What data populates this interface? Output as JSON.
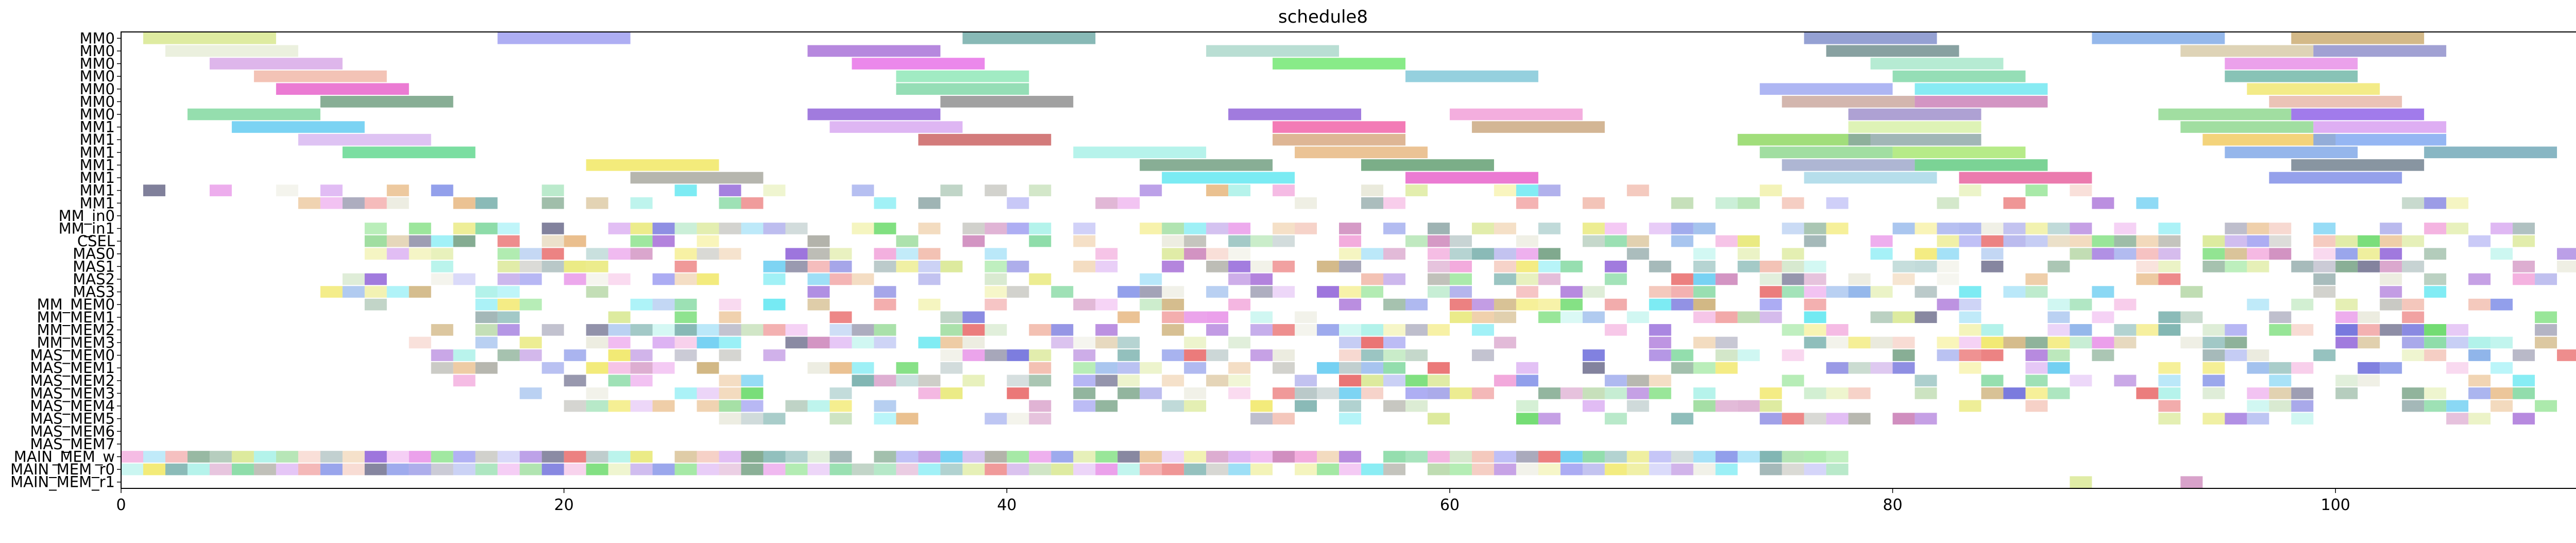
{
  "chart_data": {
    "type": "gantt",
    "title": "schedule8",
    "xlim": [
      0,
      114
    ],
    "xticks": [
      0,
      20,
      40,
      60,
      80,
      100
    ],
    "grid": false,
    "rows": [
      "MM0",
      "MM0",
      "MM0",
      "MM0",
      "MM0",
      "MM0",
      "MM0",
      "MM1",
      "MM1",
      "MM1",
      "MM1",
      "MM1",
      "MM1",
      "MM1",
      "MM_in0",
      "MM_in1",
      "CSEL",
      "MAS0",
      "MAS1",
      "MAS2",
      "MAS3",
      "MM_MEM0",
      "MM_MEM1",
      "MM_MEM2",
      "MM_MEM3",
      "MAS_MEM0",
      "MAS_MEM1",
      "MAS_MEM2",
      "MAS_MEM3",
      "MAS_MEM4",
      "MAS_MEM5",
      "MAS_MEM6",
      "MAS_MEM7",
      "MAIN_MEM_w",
      "MAIN_MEM_r0",
      "MAIN_MEM_r1"
    ],
    "bars": [
      {
        "row": 0,
        "start": 1,
        "end": 7,
        "color": "#d6e68a"
      },
      {
        "row": 0,
        "start": 17,
        "end": 23,
        "color": "#9a9af0"
      },
      {
        "row": 0,
        "start": 38,
        "end": 44,
        "color": "#6aa8a4"
      },
      {
        "row": 0,
        "start": 76,
        "end": 82,
        "color": "#7a8ac8"
      },
      {
        "row": 0,
        "start": 89,
        "end": 95,
        "color": "#7aa6e6"
      },
      {
        "row": 0,
        "start": 98,
        "end": 104,
        "color": "#c8a86a"
      },
      {
        "row": 1,
        "start": 2,
        "end": 8,
        "color": "#e6ecd6"
      },
      {
        "row": 1,
        "start": 31,
        "end": 37,
        "color": "#a46ad6"
      },
      {
        "row": 1,
        "start": 49,
        "end": 55,
        "color": "#a8d6c8"
      },
      {
        "row": 1,
        "start": 77,
        "end": 83,
        "color": "#6a8a8a"
      },
      {
        "row": 1,
        "start": 93,
        "end": 99,
        "color": "#d6c8a4"
      },
      {
        "row": 1,
        "start": 99,
        "end": 105,
        "color": "#8a8ac8"
      },
      {
        "row": 2,
        "start": 4,
        "end": 10,
        "color": "#d6a4e6"
      },
      {
        "row": 2,
        "start": 33,
        "end": 39,
        "color": "#e66ae6"
      },
      {
        "row": 2,
        "start": 52,
        "end": 58,
        "color": "#6ae66a"
      },
      {
        "row": 2,
        "start": 79,
        "end": 85,
        "color": "#a4e6c8"
      },
      {
        "row": 2,
        "start": 95,
        "end": 101,
        "color": "#e68ae6"
      },
      {
        "row": 3,
        "start": 6,
        "end": 12,
        "color": "#f0b4a4"
      },
      {
        "row": 3,
        "start": 35,
        "end": 41,
        "color": "#8ae6b4"
      },
      {
        "row": 3,
        "start": 58,
        "end": 64,
        "color": "#7ac4d6"
      },
      {
        "row": 3,
        "start": 80,
        "end": 86,
        "color": "#7ad6a4"
      },
      {
        "row": 3,
        "start": 95,
        "end": 101,
        "color": "#6ab4a4"
      },
      {
        "row": 4,
        "start": 7,
        "end": 13,
        "color": "#e65ac8"
      },
      {
        "row": 4,
        "start": 35,
        "end": 41,
        "color": "#7ad6a4"
      },
      {
        "row": 4,
        "start": 74,
        "end": 80,
        "color": "#9aa4f0"
      },
      {
        "row": 4,
        "start": 81,
        "end": 87,
        "color": "#6ae6f0"
      },
      {
        "row": 4,
        "start": 96,
        "end": 102,
        "color": "#f0e66a"
      },
      {
        "row": 5,
        "start": 9,
        "end": 15,
        "color": "#6a9a7a"
      },
      {
        "row": 5,
        "start": 37,
        "end": 43,
        "color": "#8a8a8a"
      },
      {
        "row": 5,
        "start": 75,
        "end": 81,
        "color": "#c8a49a"
      },
      {
        "row": 5,
        "start": 81,
        "end": 87,
        "color": "#c87ab4"
      },
      {
        "row": 5,
        "start": 97,
        "end": 103,
        "color": "#e6b4a4"
      },
      {
        "row": 6,
        "start": 3,
        "end": 9,
        "color": "#7ad69a"
      },
      {
        "row": 6,
        "start": 31,
        "end": 37,
        "color": "#8a5ad6"
      },
      {
        "row": 6,
        "start": 50,
        "end": 56,
        "color": "#8a5ad6"
      },
      {
        "row": 6,
        "start": 60,
        "end": 66,
        "color": "#f09ad6"
      },
      {
        "row": 6,
        "start": 78,
        "end": 84,
        "color": "#9a8ac8"
      },
      {
        "row": 6,
        "start": 92,
        "end": 98,
        "color": "#8ad68a"
      },
      {
        "row": 6,
        "start": 98,
        "end": 104,
        "color": "#8a5ae6"
      },
      {
        "row": 7,
        "start": 5,
        "end": 11,
        "color": "#5ac8f0"
      },
      {
        "row": 7,
        "start": 32,
        "end": 38,
        "color": "#d6a4f0"
      },
      {
        "row": 7,
        "start": 52,
        "end": 58,
        "color": "#f05aa4"
      },
      {
        "row": 7,
        "start": 61,
        "end": 67,
        "color": "#c8a47a"
      },
      {
        "row": 7,
        "start": 78,
        "end": 84,
        "color": "#d6f0a4"
      },
      {
        "row": 7,
        "start": 93,
        "end": 99,
        "color": "#8ad68a"
      },
      {
        "row": 7,
        "start": 99,
        "end": 105,
        "color": "#d69af0"
      },
      {
        "row": 8,
        "start": 8,
        "end": 14,
        "color": "#d6b4f0"
      },
      {
        "row": 8,
        "start": 36,
        "end": 42,
        "color": "#c85a5a"
      },
      {
        "row": 8,
        "start": 52,
        "end": 58,
        "color": "#d6a47a"
      },
      {
        "row": 8,
        "start": 73,
        "end": 79,
        "color": "#8ad65a"
      },
      {
        "row": 8,
        "start": 78,
        "end": 84,
        "color": "#8aa4a4"
      },
      {
        "row": 8,
        "start": 94,
        "end": 100,
        "color": "#f0c85a"
      },
      {
        "row": 8,
        "start": 99,
        "end": 105,
        "color": "#7aa4f0"
      },
      {
        "row": 9,
        "start": 10,
        "end": 16,
        "color": "#5ad68a"
      },
      {
        "row": 9,
        "start": 43,
        "end": 49,
        "color": "#a4f0e6"
      },
      {
        "row": 9,
        "start": 53,
        "end": 59,
        "color": "#e6b47a"
      },
      {
        "row": 9,
        "start": 74,
        "end": 80,
        "color": "#8ad68a"
      },
      {
        "row": 9,
        "start": 80,
        "end": 86,
        "color": "#a4e66a"
      },
      {
        "row": 9,
        "start": 95,
        "end": 101,
        "color": "#7aa4e6"
      },
      {
        "row": 9,
        "start": 104,
        "end": 110,
        "color": "#6aa4b4"
      },
      {
        "row": 10,
        "start": 21,
        "end": 27,
        "color": "#f0e65a"
      },
      {
        "row": 10,
        "start": 46,
        "end": 52,
        "color": "#6a9a7a"
      },
      {
        "row": 10,
        "start": 56,
        "end": 62,
        "color": "#5a9a6a"
      },
      {
        "row": 10,
        "start": 75,
        "end": 81,
        "color": "#9aa4c8"
      },
      {
        "row": 10,
        "start": 81,
        "end": 87,
        "color": "#5ac87a"
      },
      {
        "row": 10,
        "start": 98,
        "end": 104,
        "color": "#6a7a8a"
      },
      {
        "row": 11,
        "start": 23,
        "end": 29,
        "color": "#a4a49a"
      },
      {
        "row": 11,
        "start": 47,
        "end": 53,
        "color": "#5ae6f0"
      },
      {
        "row": 11,
        "start": 58,
        "end": 64,
        "color": "#e65ac8"
      },
      {
        "row": 11,
        "start": 76,
        "end": 82,
        "color": "#a4d6e6"
      },
      {
        "row": 11,
        "start": 83,
        "end": 89,
        "color": "#e65a9a"
      },
      {
        "row": 11,
        "start": 97,
        "end": 103,
        "color": "#7a8ae6"
      }
    ],
    "pattern_rows": [
      {
        "row": 12,
        "from": 0,
        "to": 89,
        "density": 0.35
      },
      {
        "row": 13,
        "from": 2,
        "to": 108,
        "density": 0.35
      },
      {
        "row": 14,
        "from": 75,
        "to": 80,
        "density": 0.2
      },
      {
        "row": 15,
        "from": 10,
        "to": 114,
        "density": 0.65
      },
      {
        "row": 16,
        "from": 11,
        "to": 114,
        "density": 0.6
      },
      {
        "row": 17,
        "from": 11,
        "to": 114,
        "density": 0.6
      },
      {
        "row": 18,
        "from": 12,
        "to": 114,
        "density": 0.55
      },
      {
        "row": 19,
        "from": 9,
        "to": 110,
        "density": 0.45
      },
      {
        "row": 20,
        "from": 9,
        "to": 107,
        "density": 0.4
      },
      {
        "row": 21,
        "from": 9,
        "to": 110,
        "density": 0.4
      },
      {
        "row": 22,
        "from": 13,
        "to": 111,
        "density": 0.45
      },
      {
        "row": 23,
        "from": 13,
        "to": 113,
        "density": 0.55
      },
      {
        "row": 24,
        "from": 13,
        "to": 113,
        "density": 0.55
      },
      {
        "row": 25,
        "from": 14,
        "to": 112,
        "density": 0.55
      },
      {
        "row": 26,
        "from": 14,
        "to": 111,
        "density": 0.55
      },
      {
        "row": 27,
        "from": 14,
        "to": 113,
        "density": 0.5
      },
      {
        "row": 28,
        "from": 16,
        "to": 110,
        "density": 0.5
      },
      {
        "row": 29,
        "from": 20,
        "to": 111,
        "density": 0.45
      },
      {
        "row": 30,
        "from": 27,
        "to": 109,
        "density": 0.45
      },
      {
        "row": 33,
        "from": 0,
        "to": 78,
        "density": 0.95
      },
      {
        "row": 34,
        "from": 0,
        "to": 78,
        "density": 0.95
      },
      {
        "row": 35,
        "from": 88,
        "to": 95,
        "density": 0.6
      }
    ],
    "palette": [
      "#e6e66a",
      "#9a9af0",
      "#6aa8a4",
      "#e65a5a",
      "#7ad69a",
      "#5ac8f0",
      "#d6a4f0",
      "#6a9a7a",
      "#a4a49a",
      "#f0b4a4",
      "#8ad68a",
      "#7a8ae6",
      "#c87ab4",
      "#5ae6f0",
      "#e6b47a",
      "#a4f0e6",
      "#8a5ad6",
      "#d6e68a",
      "#6a6a8a",
      "#f09ad6",
      "#5ad65a",
      "#c8a86a",
      "#7aa6e6",
      "#e6e6d6",
      "#b4d6a4",
      "#5a5ad6",
      "#e68ae6",
      "#8aa4a4",
      "#f0e65a",
      "#a46ad6"
    ]
  }
}
